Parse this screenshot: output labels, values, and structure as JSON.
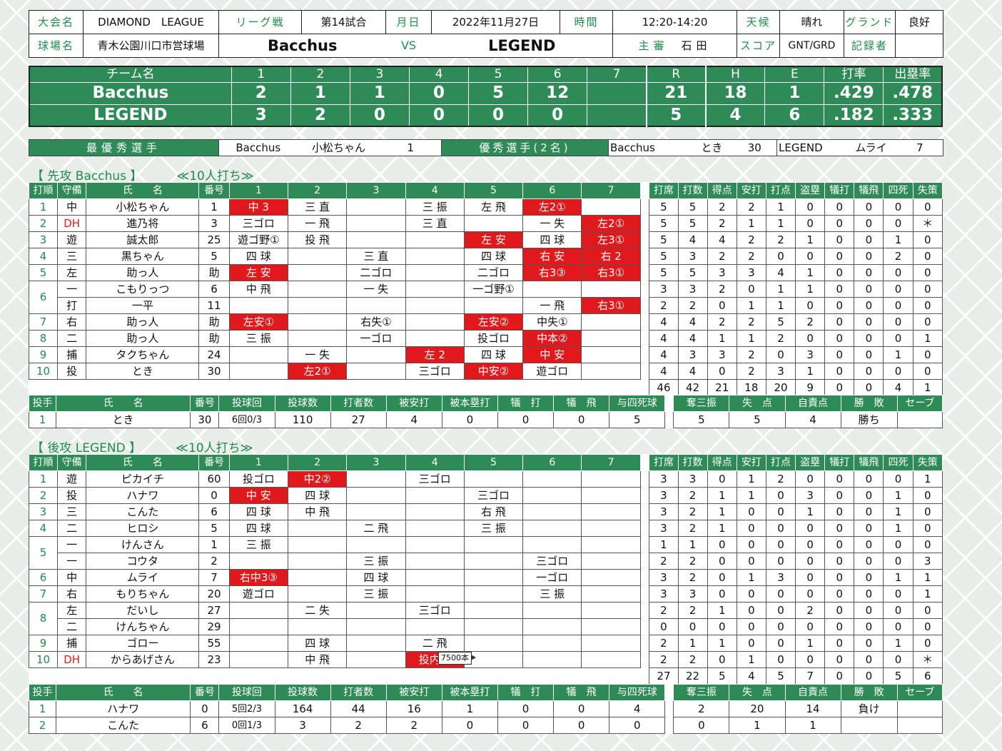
{
  "header": {
    "taikai_label": "大会名",
    "taikai": "DIAMOND　LEAGUE",
    "league_label": "リーグ戦",
    "game_no": "第14試合",
    "date_label": "月日",
    "date": "2022年11月27日",
    "time_label": "時間",
    "time": "12:20-14:20",
    "weather_label": "天候",
    "weather": "晴れ",
    "ground_label": "グランド",
    "ground": "良好",
    "stadium_label": "球場名",
    "stadium": "青木公園川口市営球場",
    "team_home": "Bacchus",
    "vs": "VS",
    "team_away": "LEGEND",
    "umpire_label": "主審",
    "umpire": "石田",
    "score_label": "スコア",
    "score": "GNT/GRD",
    "recorder_label": "記録者",
    "recorder": ""
  },
  "linescore": {
    "headers": [
      "チーム名",
      "1",
      "2",
      "3",
      "4",
      "5",
      "6",
      "7",
      "R",
      "H",
      "E",
      "打率",
      "出塁率"
    ],
    "rows": [
      {
        "team": "Bacchus",
        "innings": [
          "2",
          "1",
          "1",
          "0",
          "5",
          "12",
          ""
        ],
        "R": "21",
        "H": "18",
        "E": "1",
        "avg": ".429",
        "obp": ".478"
      },
      {
        "team": "LEGEND",
        "innings": [
          "3",
          "2",
          "0",
          "0",
          "0",
          "0",
          ""
        ],
        "R": "5",
        "H": "4",
        "E": "6",
        "avg": ".182",
        "obp": ".333"
      }
    ]
  },
  "mvp": {
    "best_label": "最優秀選手",
    "best_team": "Bacchus",
    "best_name": "小松ちゃん",
    "best_num": "1",
    "good_label": "優秀選手(2名)",
    "good1_team": "Bacchus",
    "good1_name": "とき",
    "good1_num": "30",
    "good2_team": "LEGEND",
    "good2_name": "ムライ",
    "good2_num": "7"
  },
  "bat_headers": [
    "打順",
    "守備",
    "氏　　名",
    "番号",
    "1",
    "2",
    "3",
    "4",
    "5",
    "6",
    "7",
    "打席",
    "打数",
    "得点",
    "安打",
    "打点",
    "盗塁",
    "犠打",
    "犠飛",
    "四死",
    "失策"
  ],
  "pit_headers": [
    "投手",
    "氏　　名",
    "番号",
    "投球回",
    "投球数",
    "打者数",
    "被安打",
    "被本塁打",
    "犠　打",
    "犠　飛",
    "与四死球",
    "奪三振",
    "失　点",
    "自責点",
    "勝　敗",
    "セーブ"
  ],
  "top": {
    "title": "【 先攻 Bacchus 】",
    "note": "≪10人打ち≫",
    "rows": [
      {
        "order": "1",
        "pos": "中",
        "name": "小松ちゃん",
        "num": "1",
        "ab": [
          {
            "t": "中 3",
            "r": 1
          },
          {
            "t": "三 直"
          },
          {
            "t": ""
          },
          {
            "t": "三 振"
          },
          {
            "t": "左 飛"
          },
          {
            "t": "左2①",
            "r": 1
          },
          {
            "t": ""
          }
        ],
        "st": [
          "5",
          "5",
          "2",
          "2",
          "1",
          "0",
          "0",
          "0",
          "0",
          "0"
        ]
      },
      {
        "order": "2",
        "pos": "DH",
        "name": "進乃将",
        "num": "3",
        "ab": [
          {
            "t": "三ゴロ"
          },
          {
            "t": "一 飛"
          },
          {
            "t": ""
          },
          {
            "t": "三 直"
          },
          {
            "t": ""
          },
          {
            "t": "一 失"
          },
          {
            "t": "左2①",
            "r": 1
          }
        ],
        "st": [
          "5",
          "5",
          "2",
          "1",
          "1",
          "0",
          "0",
          "0",
          "0",
          "＊"
        ]
      },
      {
        "order": "3",
        "pos": "遊",
        "name": "誠太郎",
        "num": "25",
        "ab": [
          {
            "t": "遊ゴ野①"
          },
          {
            "t": "投 飛"
          },
          {
            "t": ""
          },
          {
            "t": ""
          },
          {
            "t": "左 安",
            "r": 1
          },
          {
            "t": "四 球"
          },
          {
            "t": "左3①",
            "r": 1
          }
        ],
        "st": [
          "5",
          "4",
          "4",
          "2",
          "2",
          "1",
          "0",
          "0",
          "1",
          "0"
        ]
      },
      {
        "order": "4",
        "pos": "三",
        "name": "黒ちゃん",
        "num": "5",
        "ab": [
          {
            "t": "四 球"
          },
          {
            "t": ""
          },
          {
            "t": "三 直"
          },
          {
            "t": ""
          },
          {
            "t": "四 球"
          },
          {
            "t": "右 安",
            "r": 1
          },
          {
            "t": "右 2",
            "r": 1
          }
        ],
        "st": [
          "5",
          "3",
          "2",
          "2",
          "0",
          "0",
          "0",
          "0",
          "2",
          "0"
        ]
      },
      {
        "order": "5",
        "pos": "左",
        "name": "助っ人",
        "num": "助",
        "ab": [
          {
            "t": "左 安",
            "r": 1
          },
          {
            "t": ""
          },
          {
            "t": "二ゴロ"
          },
          {
            "t": ""
          },
          {
            "t": "二ゴロ"
          },
          {
            "t": "右3③",
            "r": 1
          },
          {
            "t": "右3①",
            "r": 1
          }
        ],
        "st": [
          "5",
          "5",
          "3",
          "3",
          "4",
          "1",
          "0",
          "0",
          "0",
          "0"
        ]
      },
      {
        "order": "6",
        "pos": "一",
        "name": "こもりっつ",
        "num": "6",
        "ab": [
          {
            "t": "中 飛"
          },
          {
            "t": ""
          },
          {
            "t": "一 失"
          },
          {
            "t": ""
          },
          {
            "t": "一ゴ野①"
          },
          {
            "t": ""
          },
          {
            "t": ""
          }
        ],
        "st": [
          "3",
          "3",
          "2",
          "0",
          "1",
          "1",
          "0",
          "0",
          "0",
          "0"
        ]
      },
      {
        "order": "",
        "pos": "打",
        "name": "一平",
        "num": "11",
        "ab": [
          {
            "t": ""
          },
          {
            "t": ""
          },
          {
            "t": ""
          },
          {
            "t": ""
          },
          {
            "t": ""
          },
          {
            "t": "一 飛"
          },
          {
            "t": "右3①",
            "r": 1
          }
        ],
        "st": [
          "2",
          "2",
          "0",
          "1",
          "1",
          "0",
          "0",
          "0",
          "0",
          "0"
        ]
      },
      {
        "order": "7",
        "pos": "右",
        "name": "助っ人",
        "num": "助",
        "ab": [
          {
            "t": "左安①",
            "r": 1
          },
          {
            "t": ""
          },
          {
            "t": "右失①"
          },
          {
            "t": ""
          },
          {
            "t": "左安②",
            "r": 1
          },
          {
            "t": "中失①"
          },
          {
            "t": ""
          }
        ],
        "st": [
          "4",
          "4",
          "2",
          "2",
          "5",
          "2",
          "0",
          "0",
          "0",
          "0"
        ]
      },
      {
        "order": "8",
        "pos": "二",
        "name": "助っ人",
        "num": "助",
        "ab": [
          {
            "t": "三 振"
          },
          {
            "t": ""
          },
          {
            "t": "一ゴロ"
          },
          {
            "t": ""
          },
          {
            "t": "投ゴロ"
          },
          {
            "t": "中本②",
            "r": 1
          },
          {
            "t": ""
          }
        ],
        "st": [
          "4",
          "4",
          "1",
          "1",
          "2",
          "0",
          "0",
          "0",
          "0",
          "1"
        ]
      },
      {
        "order": "9",
        "pos": "捕",
        "name": "タクちゃん",
        "num": "24",
        "ab": [
          {
            "t": ""
          },
          {
            "t": "一 失"
          },
          {
            "t": ""
          },
          {
            "t": "左 2",
            "r": 1
          },
          {
            "t": "四 球"
          },
          {
            "t": "中 安",
            "r": 1
          },
          {
            "t": ""
          }
        ],
        "st": [
          "4",
          "3",
          "3",
          "2",
          "0",
          "3",
          "0",
          "0",
          "1",
          "0"
        ]
      },
      {
        "order": "10",
        "pos": "投",
        "name": "とき",
        "num": "30",
        "ab": [
          {
            "t": ""
          },
          {
            "t": "左2①",
            "r": 1
          },
          {
            "t": ""
          },
          {
            "t": "三ゴロ"
          },
          {
            "t": "中安②",
            "r": 1
          },
          {
            "t": "遊ゴロ"
          },
          {
            "t": ""
          }
        ],
        "st": [
          "4",
          "4",
          "0",
          "2",
          "3",
          "1",
          "0",
          "0",
          "0",
          "0"
        ]
      }
    ],
    "totals": [
      "46",
      "42",
      "21",
      "18",
      "20",
      "9",
      "0",
      "0",
      "4",
      "1"
    ],
    "pitchers": [
      {
        "no": "1",
        "name": "とき",
        "num": "30",
        "ip": "6回0/3",
        "np": "110",
        "bf": "27",
        "h": "4",
        "hr": "0",
        "sh": "0",
        "sf": "0",
        "bb": "5",
        "so": "5",
        "r": "5",
        "er": "4",
        "wl": "勝ち",
        "sv": ""
      }
    ]
  },
  "bottom": {
    "title": "【 後攻 LEGEND 】",
    "note": "≪10人打ち≫",
    "rows": [
      {
        "order": "1",
        "pos": "遊",
        "name": "ピカイチ",
        "num": "60",
        "ab": [
          {
            "t": "投ゴロ"
          },
          {
            "t": "中2②",
            "r": 1
          },
          {
            "t": ""
          },
          {
            "t": "三ゴロ"
          },
          {
            "t": ""
          },
          {
            "t": ""
          },
          {
            "t": ""
          }
        ],
        "st": [
          "3",
          "3",
          "0",
          "1",
          "2",
          "0",
          "0",
          "0",
          "0",
          "1"
        ]
      },
      {
        "order": "2",
        "pos": "投",
        "name": "ハナワ",
        "num": "0",
        "ab": [
          {
            "t": "中 安",
            "r": 1
          },
          {
            "t": "四 球"
          },
          {
            "t": ""
          },
          {
            "t": ""
          },
          {
            "t": "三ゴロ"
          },
          {
            "t": ""
          },
          {
            "t": ""
          }
        ],
        "st": [
          "3",
          "2",
          "1",
          "1",
          "0",
          "3",
          "0",
          "0",
          "1",
          "0"
        ]
      },
      {
        "order": "3",
        "pos": "三",
        "name": "こんた",
        "num": "6",
        "ab": [
          {
            "t": "四 球"
          },
          {
            "t": "中 飛"
          },
          {
            "t": ""
          },
          {
            "t": ""
          },
          {
            "t": "右 飛"
          },
          {
            "t": ""
          },
          {
            "t": ""
          }
        ],
        "st": [
          "3",
          "2",
          "1",
          "0",
          "0",
          "1",
          "0",
          "0",
          "1",
          "0"
        ]
      },
      {
        "order": "4",
        "pos": "二",
        "name": "ヒロシ",
        "num": "5",
        "ab": [
          {
            "t": "四 球"
          },
          {
            "t": ""
          },
          {
            "t": "二 飛"
          },
          {
            "t": ""
          },
          {
            "t": "三 振"
          },
          {
            "t": ""
          },
          {
            "t": ""
          }
        ],
        "st": [
          "3",
          "2",
          "1",
          "0",
          "0",
          "0",
          "0",
          "0",
          "1",
          "0"
        ]
      },
      {
        "order": "5",
        "pos": "一",
        "name": "けんさん",
        "num": "1",
        "ab": [
          {
            "t": "三 振"
          },
          {
            "t": ""
          },
          {
            "t": ""
          },
          {
            "t": ""
          },
          {
            "t": ""
          },
          {
            "t": ""
          },
          {
            "t": ""
          }
        ],
        "st": [
          "1",
          "1",
          "0",
          "0",
          "0",
          "0",
          "0",
          "0",
          "0",
          "0"
        ]
      },
      {
        "order": "",
        "pos": "一",
        "name": "コウタ",
        "num": "2",
        "ab": [
          {
            "t": ""
          },
          {
            "t": ""
          },
          {
            "t": "三 振"
          },
          {
            "t": ""
          },
          {
            "t": ""
          },
          {
            "t": "三ゴロ"
          },
          {
            "t": ""
          }
        ],
        "st": [
          "2",
          "2",
          "0",
          "0",
          "0",
          "0",
          "0",
          "0",
          "0",
          "3"
        ]
      },
      {
        "order": "6",
        "pos": "中",
        "name": "ムライ",
        "num": "7",
        "ab": [
          {
            "t": "右中3③",
            "r": 1
          },
          {
            "t": ""
          },
          {
            "t": "四 球"
          },
          {
            "t": ""
          },
          {
            "t": ""
          },
          {
            "t": "一ゴロ"
          },
          {
            "t": ""
          }
        ],
        "st": [
          "3",
          "2",
          "0",
          "1",
          "3",
          "0",
          "0",
          "0",
          "1",
          "1"
        ]
      },
      {
        "order": "7",
        "pos": "右",
        "name": "もりちゃん",
        "num": "20",
        "ab": [
          {
            "t": "遊ゴロ"
          },
          {
            "t": ""
          },
          {
            "t": "三 振"
          },
          {
            "t": ""
          },
          {
            "t": ""
          },
          {
            "t": "三 振"
          },
          {
            "t": ""
          }
        ],
        "st": [
          "3",
          "3",
          "0",
          "0",
          "0",
          "0",
          "0",
          "0",
          "0",
          "1"
        ]
      },
      {
        "order": "8",
        "pos": "左",
        "name": "だいし",
        "num": "27",
        "ab": [
          {
            "t": ""
          },
          {
            "t": "二 失"
          },
          {
            "t": ""
          },
          {
            "t": "三ゴロ"
          },
          {
            "t": ""
          },
          {
            "t": ""
          },
          {
            "t": ""
          }
        ],
        "st": [
          "2",
          "2",
          "1",
          "0",
          "0",
          "2",
          "0",
          "0",
          "0",
          "0"
        ]
      },
      {
        "order": "",
        "pos": "二",
        "name": "けんちゃん",
        "num": "29",
        "ab": [
          {
            "t": ""
          },
          {
            "t": ""
          },
          {
            "t": ""
          },
          {
            "t": ""
          },
          {
            "t": ""
          },
          {
            "t": ""
          },
          {
            "t": ""
          }
        ],
        "st": [
          "0",
          "0",
          "0",
          "0",
          "0",
          "0",
          "0",
          "0",
          "0",
          "0"
        ]
      },
      {
        "order": "9",
        "pos": "捕",
        "name": "ゴロー",
        "num": "55",
        "ab": [
          {
            "t": ""
          },
          {
            "t": "四 球"
          },
          {
            "t": ""
          },
          {
            "t": "二 飛"
          },
          {
            "t": ""
          },
          {
            "t": ""
          },
          {
            "t": ""
          }
        ],
        "st": [
          "2",
          "1",
          "1",
          "0",
          "0",
          "1",
          "0",
          "0",
          "1",
          "0"
        ]
      },
      {
        "order": "10",
        "pos": "DH",
        "name": "からあげさん",
        "num": "23",
        "ab": [
          {
            "t": ""
          },
          {
            "t": "中 飛"
          },
          {
            "t": ""
          },
          {
            "t": "投内安",
            "r": 1
          },
          {
            "t": ""
          },
          {
            "t": ""
          },
          {
            "t": ""
          }
        ],
        "st": [
          "2",
          "2",
          "0",
          "1",
          "0",
          "0",
          "0",
          "0",
          "0",
          "＊"
        ]
      }
    ],
    "totals": [
      "27",
      "22",
      "5",
      "4",
      "5",
      "7",
      "0",
      "0",
      "5",
      "6"
    ],
    "tooltip": "7500本",
    "pitchers": [
      {
        "no": "1",
        "name": "ハナワ",
        "num": "0",
        "ip": "5回2/3",
        "np": "164",
        "bf": "44",
        "h": "16",
        "hr": "1",
        "sh": "0",
        "sf": "0",
        "bb": "4",
        "so": "2",
        "r": "20",
        "er": "14",
        "wl": "負け",
        "sv": ""
      },
      {
        "no": "2",
        "name": "こんた",
        "num": "6",
        "ip": "0回1/3",
        "np": "3",
        "bf": "2",
        "h": "2",
        "hr": "0",
        "sh": "0",
        "sf": "0",
        "bb": "0",
        "so": "0",
        "r": "1",
        "er": "1",
        "wl": "",
        "sv": ""
      }
    ]
  }
}
